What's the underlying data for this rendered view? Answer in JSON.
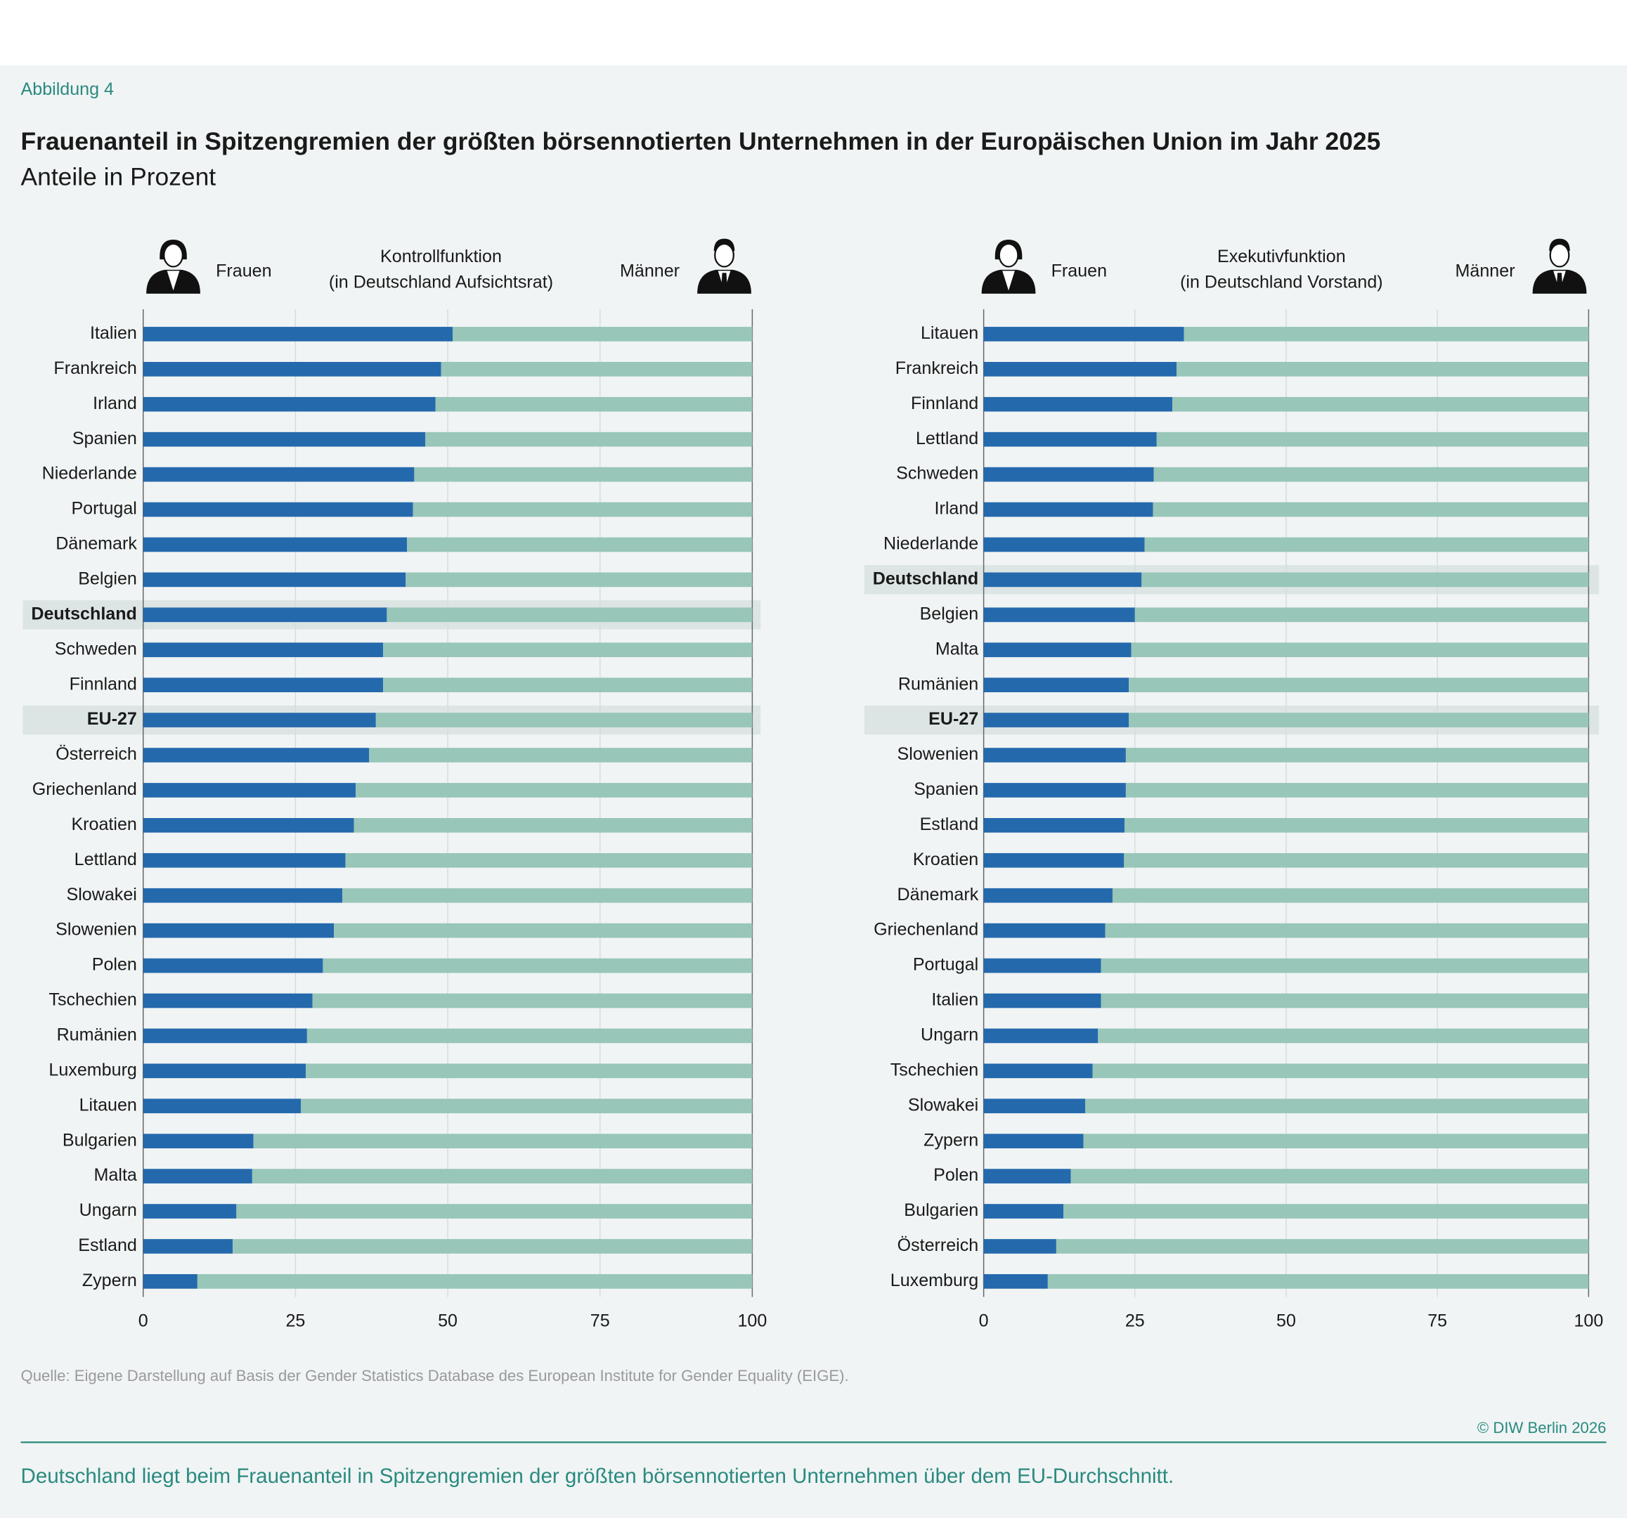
{
  "figure_label": "Abbildung 4",
  "title": "Frauenanteil in Spitzengremien der größten börsennotierten Unternehmen in der Europäischen Union im Jahr 2025",
  "subtitle": "Anteile in Prozent",
  "highlight": [
    "Deutschland",
    "EU-27"
  ],
  "chart_data": [
    {
      "type": "bar",
      "orientation": "horizontal",
      "stacked": true,
      "title": "Kontrollfunktion",
      "subtitle": "(in Deutschland Aufsichtsrat)",
      "categories": [
        "Italien",
        "Frankreich",
        "Irland",
        "Spanien",
        "Niederlande",
        "Portugal",
        "Dänemark",
        "Belgien",
        "Deutschland",
        "Schweden",
        "Finnland",
        "EU-27",
        "Österreich",
        "Griechenland",
        "Kroatien",
        "Lettland",
        "Slowakei",
        "Slowenien",
        "Polen",
        "Tschechien",
        "Rumänien",
        "Luxemburg",
        "Litauen",
        "Bulgarien",
        "Malta",
        "Ungarn",
        "Estland",
        "Zypern"
      ],
      "series": [
        {
          "name": "Frauen",
          "color": "#2569ad",
          "values": [
            50.8,
            48.9,
            48.0,
            46.3,
            44.5,
            44.3,
            43.3,
            43.1,
            40.0,
            39.4,
            39.4,
            38.2,
            37.1,
            34.9,
            34.6,
            33.2,
            32.7,
            31.3,
            29.5,
            27.8,
            26.9,
            26.7,
            25.9,
            18.1,
            17.9,
            15.3,
            14.7,
            8.9
          ]
        },
        {
          "name": "Männer",
          "color": "#98c6b8",
          "values": [
            49.2,
            51.1,
            52.0,
            53.7,
            55.5,
            55.7,
            56.7,
            56.9,
            60.0,
            60.6,
            60.6,
            61.8,
            62.9,
            65.1,
            65.4,
            66.8,
            67.3,
            68.7,
            70.5,
            72.2,
            73.1,
            73.3,
            74.1,
            81.9,
            82.1,
            84.7,
            85.3,
            91.1
          ]
        }
      ],
      "xlim": [
        0,
        100
      ],
      "xticks": [
        0,
        25,
        50,
        75,
        100
      ],
      "grid": true
    },
    {
      "type": "bar",
      "orientation": "horizontal",
      "stacked": true,
      "title": "Exekutivfunktion",
      "subtitle": "(in Deutschland Vorstand)",
      "categories": [
        "Litauen",
        "Frankreich",
        "Finnland",
        "Lettland",
        "Schweden",
        "Irland",
        "Niederlande",
        "Deutschland",
        "Belgien",
        "Malta",
        "Rumänien",
        "EU-27",
        "Slowenien",
        "Spanien",
        "Estland",
        "Kroatien",
        "Dänemark",
        "Griechenland",
        "Portugal",
        "Italien",
        "Ungarn",
        "Tschechien",
        "Slowakei",
        "Zypern",
        "Polen",
        "Bulgarien",
        "Österreich",
        "Luxemburg"
      ],
      "series": [
        {
          "name": "Frauen",
          "color": "#2569ad",
          "values": [
            33.1,
            31.9,
            31.2,
            28.6,
            28.1,
            28.0,
            26.6,
            26.1,
            25.0,
            24.4,
            24.0,
            24.0,
            23.5,
            23.5,
            23.3,
            23.2,
            21.3,
            20.1,
            19.4,
            19.4,
            18.9,
            18.0,
            16.8,
            16.5,
            14.4,
            13.2,
            12.0,
            10.6
          ]
        },
        {
          "name": "Männer",
          "color": "#98c6b8",
          "values": [
            66.9,
            68.1,
            68.8,
            71.4,
            71.9,
            72.0,
            73.4,
            73.9,
            75.0,
            75.6,
            76.0,
            76.0,
            76.5,
            76.5,
            76.7,
            76.8,
            78.7,
            79.9,
            80.6,
            80.6,
            81.1,
            82.0,
            83.2,
            83.5,
            85.6,
            86.8,
            88.0,
            89.4
          ]
        }
      ],
      "xlim": [
        0,
        100
      ],
      "xticks": [
        0,
        25,
        50,
        75,
        100
      ],
      "grid": true
    }
  ],
  "source": "Quelle: Eigene Darstellung auf Basis der Gender Statistics Database des European Institute for Gender Equality (EIGE).",
  "copyright": "© DIW Berlin 2026",
  "caption": "Deutschland liegt beim Frauenanteil in Spitzengremien der größten börsennotierten Unternehmen über dem EU-Durchschnitt."
}
